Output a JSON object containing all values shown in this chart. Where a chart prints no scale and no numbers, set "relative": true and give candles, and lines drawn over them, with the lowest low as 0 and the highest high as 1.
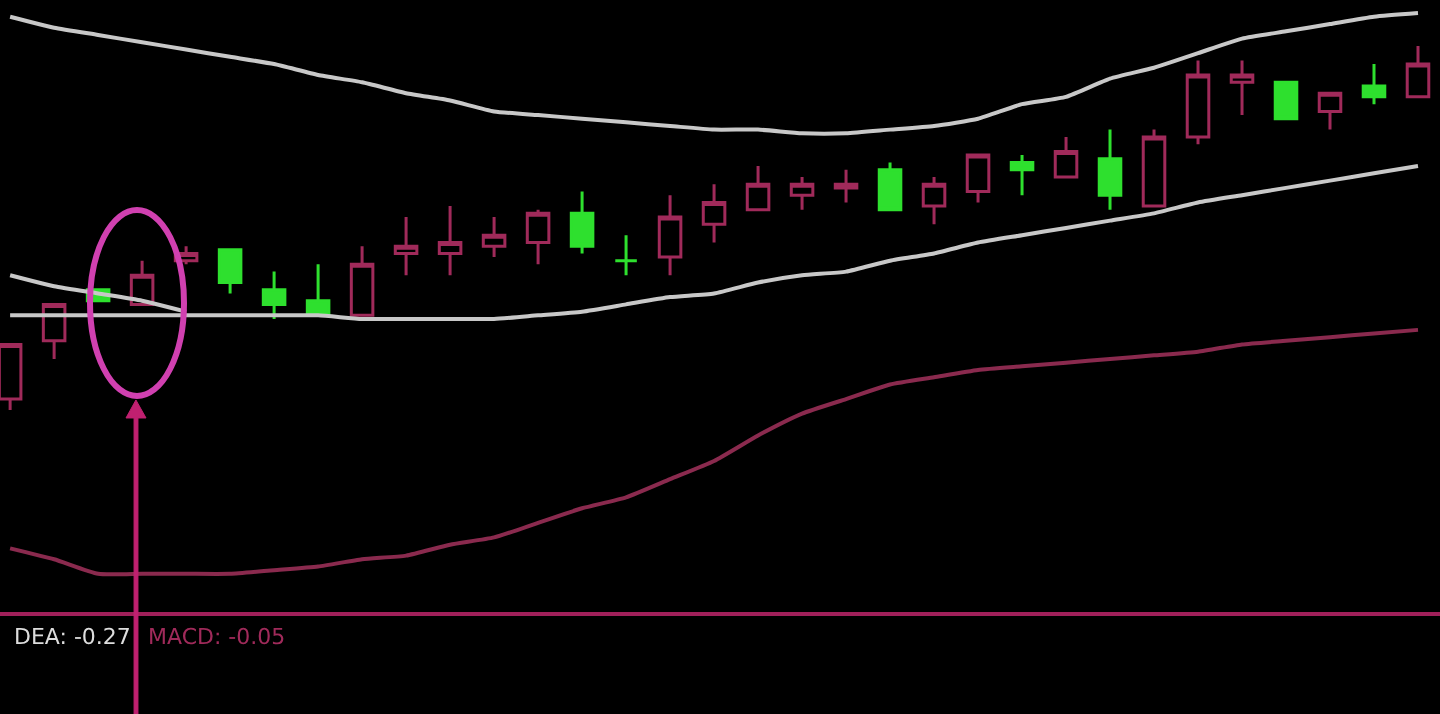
{
  "chart_data": {
    "type": "candlestick",
    "relative": true,
    "categories": [
      null,
      null,
      null,
      null,
      null,
      null,
      null,
      null,
      null,
      null,
      null,
      null,
      null,
      null,
      null,
      null,
      null,
      null,
      null,
      null,
      null,
      null,
      null,
      null,
      null,
      null,
      null,
      null,
      null,
      null,
      null,
      null,
      null
    ],
    "ohlc": [
      [
        0.03,
        0.18,
        0,
        0.18
      ],
      [
        0.19,
        0.29,
        0.14,
        0.29
      ],
      [
        0.33,
        0.33,
        0.3,
        0.3
      ],
      [
        0.29,
        0.41,
        0.29,
        0.37
      ],
      [
        0.41,
        0.45,
        0.4,
        0.43
      ],
      [
        0.44,
        0.44,
        0.32,
        0.35
      ],
      [
        0.33,
        0.38,
        0.25,
        0.29
      ],
      [
        0.3,
        0.4,
        0.26,
        0.26
      ],
      [
        0.26,
        0.45,
        0.26,
        0.4
      ],
      [
        0.43,
        0.53,
        0.37,
        0.45
      ],
      [
        0.43,
        0.56,
        0.37,
        0.46
      ],
      [
        0.45,
        0.53,
        0.42,
        0.48
      ],
      [
        0.46,
        0.55,
        0.4,
        0.54
      ],
      [
        0.54,
        0.6,
        0.43,
        0.45
      ],
      [
        0.41,
        0.48,
        0.37,
        0.41
      ],
      [
        0.42,
        0.59,
        0.37,
        0.53
      ],
      [
        0.51,
        0.62,
        0.46,
        0.57
      ],
      [
        0.55,
        0.67,
        0.55,
        0.62
      ],
      [
        0.59,
        0.64,
        0.55,
        0.62
      ],
      [
        0.61,
        0.66,
        0.57,
        0.62
      ],
      [
        0.66,
        0.68,
        0.55,
        0.55
      ],
      [
        0.56,
        0.64,
        0.51,
        0.62
      ],
      [
        0.6,
        0.7,
        0.57,
        0.7
      ],
      [
        0.68,
        0.7,
        0.59,
        0.66
      ],
      [
        0.64,
        0.75,
        0.64,
        0.71
      ],
      [
        0.69,
        0.77,
        0.55,
        0.59
      ],
      [
        0.56,
        0.77,
        0.56,
        0.75
      ],
      [
        0.75,
        0.96,
        0.73,
        0.92
      ],
      [
        0.9,
        0.96,
        0.81,
        0.92
      ],
      [
        0.9,
        0.9,
        0.8,
        0.8
      ],
      [
        0.82,
        0.87,
        0.77,
        0.87
      ],
      [
        0.89,
        0.95,
        0.84,
        0.86
      ],
      [
        0.86,
        1,
        0.86,
        0.95
      ]
    ],
    "colors": [
      "#a02a5a",
      "#a02a5a",
      "#2ee02e",
      "#a02a5a",
      "#a02a5a",
      "#2ee02e",
      "#2ee02e",
      "#2ee02e",
      "#a02a5a",
      "#a02a5a",
      "#a02a5a",
      "#a02a5a",
      "#a02a5a",
      "#2ee02e",
      "#2ee02e",
      "#a02a5a",
      "#a02a5a",
      "#a02a5a",
      "#a02a5a",
      "#a02a5a",
      "#2ee02e",
      "#a02a5a",
      "#a02a5a",
      "#2ee02e",
      "#a02a5a",
      "#2ee02e",
      "#a02a5a",
      "#a02a5a",
      "#a02a5a",
      "#2ee02e",
      "#a02a5a",
      "#2ee02e",
      "#a02a5a"
    ],
    "series": [
      {
        "type": "line",
        "color": "#c8c8c8",
        "values": [
          1.08,
          1.05,
          1.03,
          1.01,
          0.99,
          0.97,
          0.95,
          0.92,
          0.9,
          0.87,
          0.85,
          0.82,
          0.81,
          0.8,
          0.79,
          0.78,
          0.77,
          0.77,
          0.76,
          0.76,
          0.77,
          0.78,
          0.8,
          0.84,
          0.86,
          0.91,
          0.94,
          0.98,
          1.02,
          1.04,
          1.06,
          1.08,
          1.09
        ]
      },
      {
        "type": "line",
        "color": "#c8c8c8",
        "values": [
          0.26,
          0.26,
          0.26,
          0.26,
          0.26,
          0.26,
          0.26,
          0.26,
          0.25,
          0.25,
          0.25,
          0.25,
          0.26,
          0.27,
          0.29,
          0.31,
          0.32,
          0.35,
          0.37,
          0.38,
          0.41,
          0.43,
          0.46,
          0.48,
          0.5,
          0.52,
          0.54,
          0.57,
          0.59,
          0.61,
          0.63,
          0.65,
          0.67
        ]
      },
      {
        "type": "line",
        "color": "#c8c8c8",
        "values": [
          0.37,
          0.34,
          0.32,
          0.3,
          0.27,
          null,
          null,
          null,
          null,
          null,
          null,
          null,
          null,
          null,
          null,
          null,
          null,
          null,
          null,
          null,
          null,
          null,
          null,
          null,
          null,
          null,
          null,
          null,
          null,
          null,
          null,
          null,
          null
        ]
      },
      {
        "type": "line",
        "color": "#8a2a4e",
        "values": [
          -0.38,
          -0.41,
          -0.45,
          -0.45,
          -0.45,
          -0.45,
          -0.44,
          -0.43,
          -0.41,
          -0.4,
          -0.37,
          -0.35,
          -0.31,
          -0.27,
          -0.24,
          -0.19,
          -0.14,
          -0.07,
          -0.01,
          0.03,
          0.07,
          0.09,
          0.11,
          0.12,
          0.13,
          0.14,
          0.15,
          0.16,
          0.18,
          0.19,
          0.2,
          0.21,
          0.22
        ]
      }
    ],
    "ref_lines": [
      {
        "axis": "y",
        "value": -0.56,
        "color": "#a0205a"
      }
    ],
    "annotations": [
      "DEA: -0.27",
      "MACD: -0.05"
    ]
  }
}
